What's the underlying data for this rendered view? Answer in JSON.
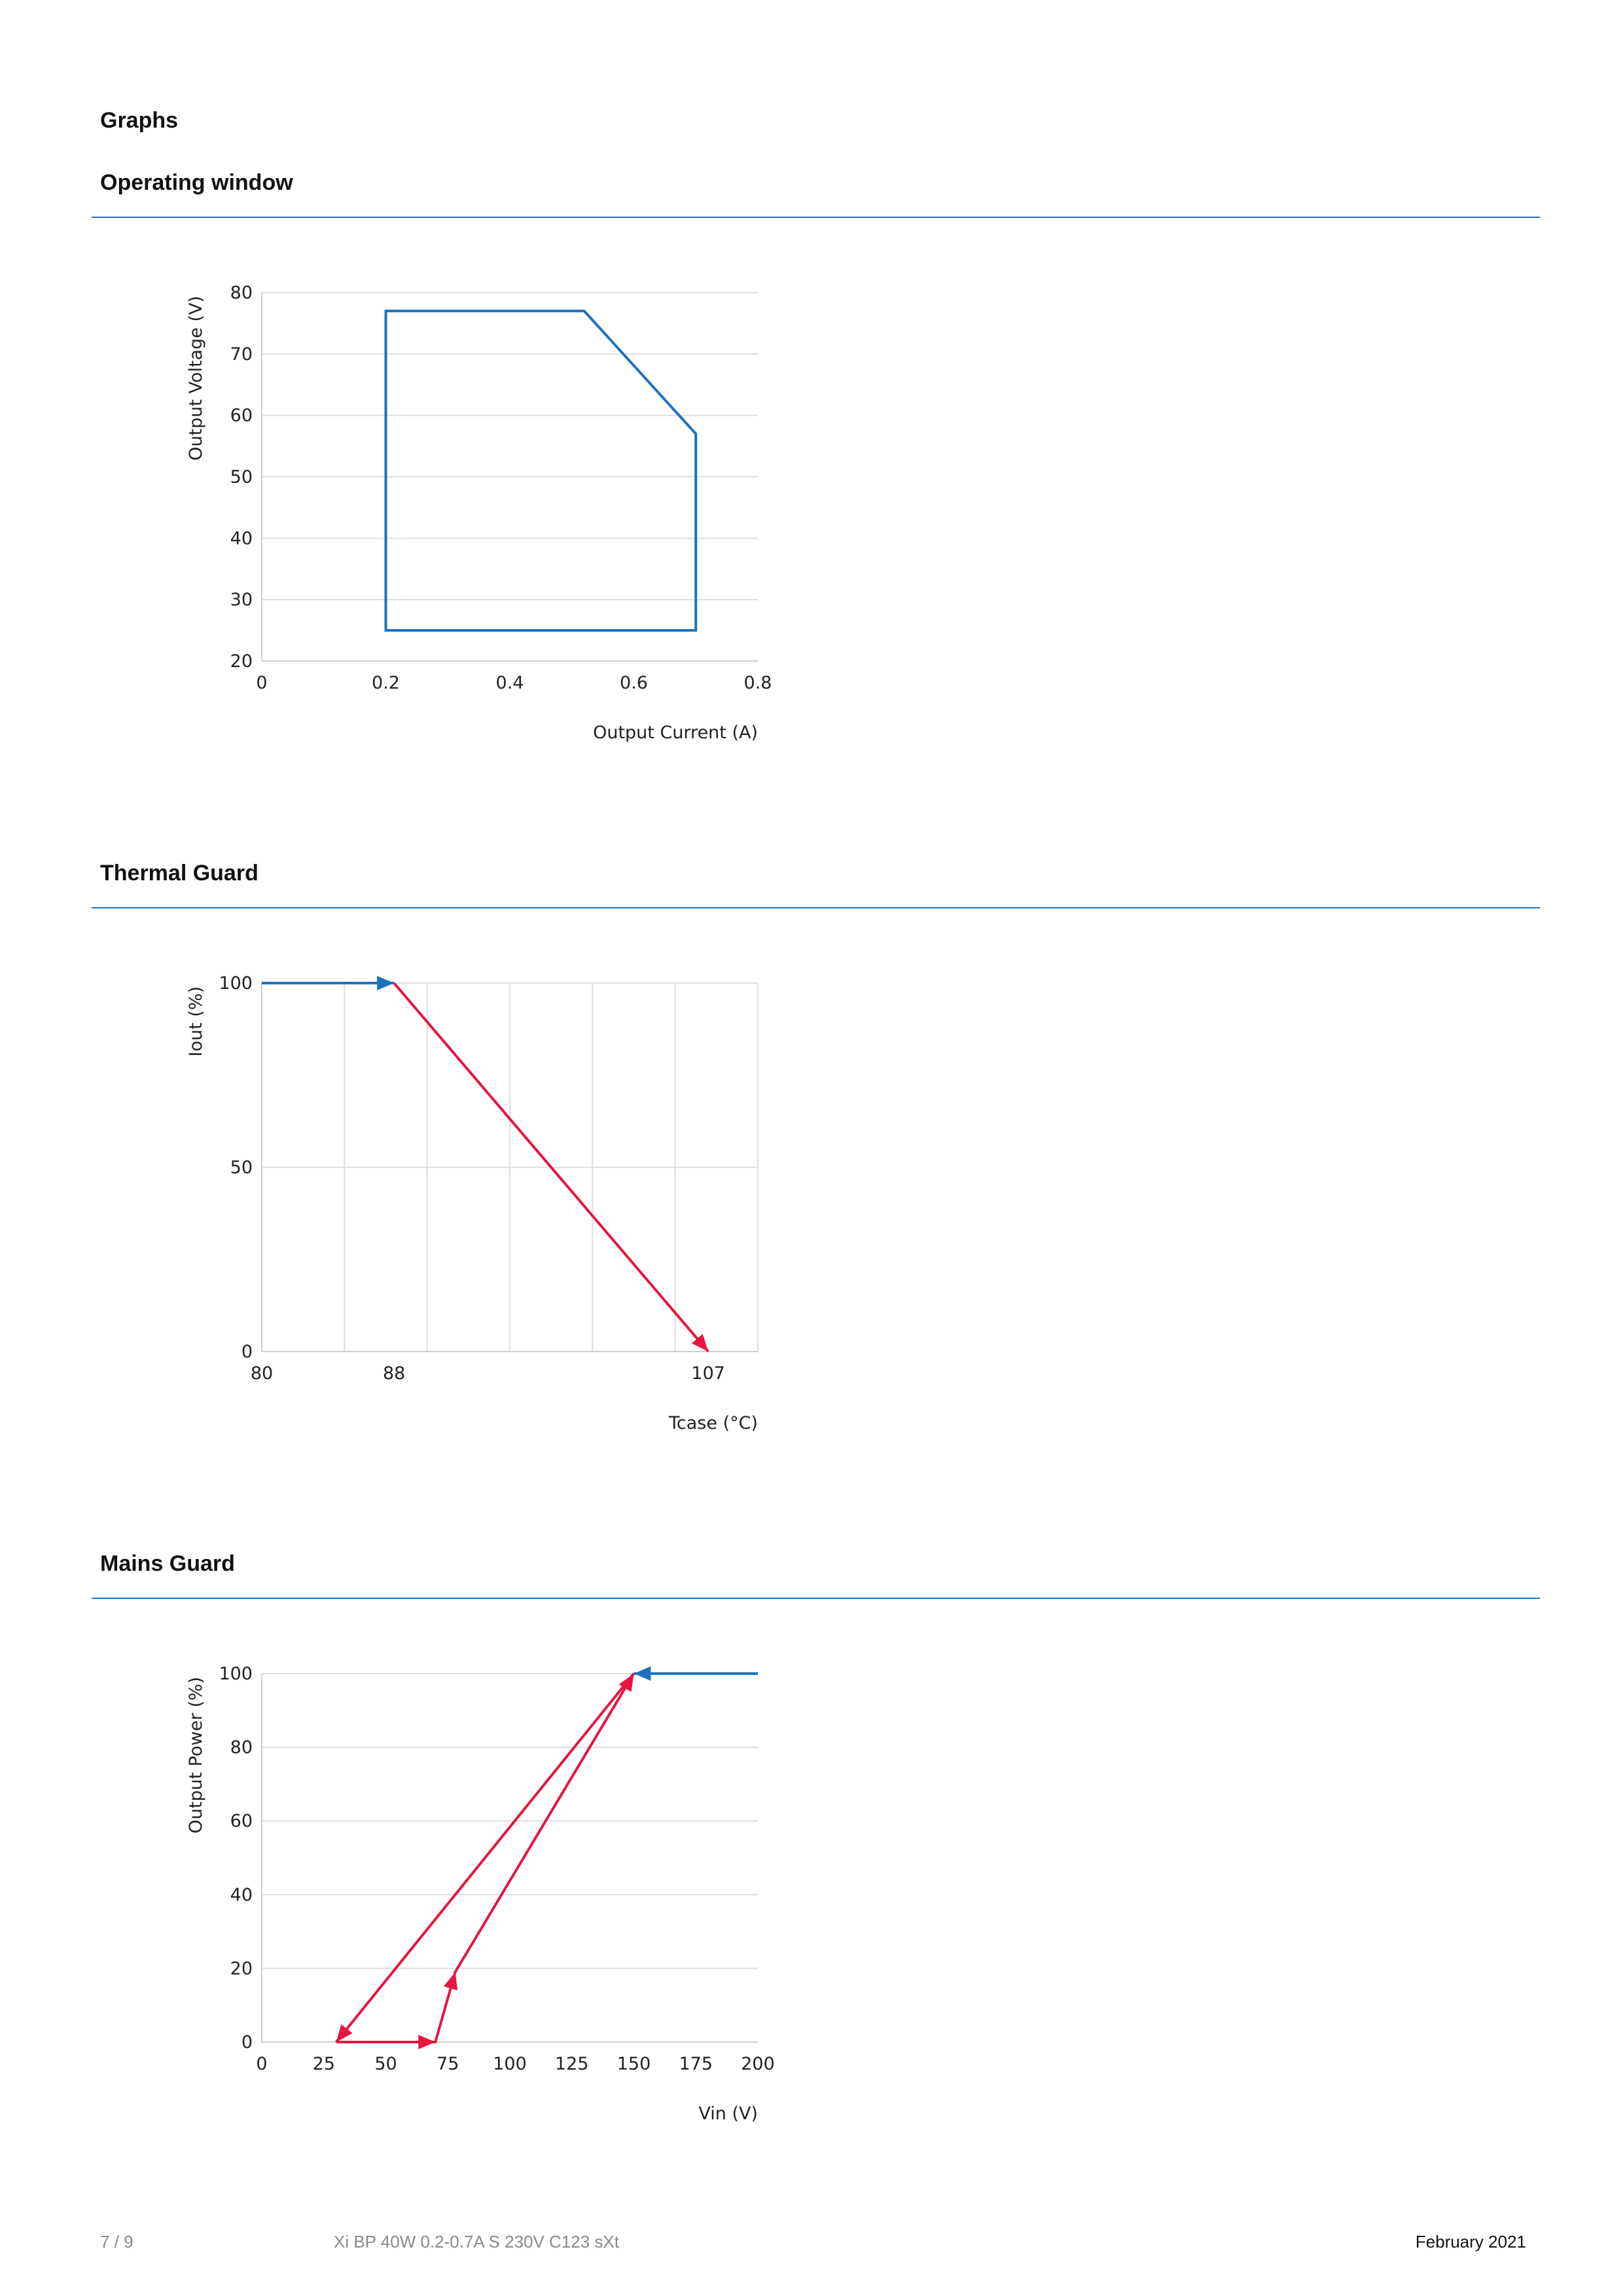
{
  "page": {
    "heading": "Graphs",
    "footer": {
      "page_number": "7 / 9",
      "product": "Xi BP 40W 0.2-0.7A S 230V C123 sXt",
      "date": "February 2021"
    }
  },
  "colors": {
    "rule": "#2a6fb0",
    "blue_line": "#1a72c0",
    "red_line": "#e5163f",
    "grid": "#dedede"
  },
  "sections": [
    {
      "title": "Operating window"
    },
    {
      "title": "Thermal Guard"
    },
    {
      "title": "Mains Guard"
    }
  ],
  "chart_data": [
    {
      "type": "line",
      "xlabel": "Output Current (A)",
      "ylabel": "Output Voltage (V)",
      "xlim": [
        0,
        0.8
      ],
      "ylim": [
        20,
        80
      ],
      "x_ticks": [
        "0",
        "0.2",
        "0.4",
        "0.6",
        "0.8"
      ],
      "y_ticks": [
        "20",
        "30",
        "40",
        "50",
        "60",
        "70",
        "80"
      ],
      "grid": "horizontal",
      "series": [
        {
          "color": "#1a72c0",
          "closed": true,
          "arrows": [],
          "x": [
            0.2,
            0.52,
            0.7,
            0.7,
            0.2
          ],
          "y": [
            77,
            77,
            57,
            25,
            25
          ]
        }
      ]
    },
    {
      "type": "line",
      "xlabel": "Tcase (°C)",
      "ylabel": "Iout (%)",
      "xlim": [
        80,
        110
      ],
      "ylim": [
        0,
        100
      ],
      "x_ticks": [
        "80",
        "88",
        "107"
      ],
      "y_ticks": [
        "0",
        "50",
        "100"
      ],
      "grid": "both",
      "series": [
        {
          "color": "#1a72c0",
          "closed": false,
          "arrows": [
            1
          ],
          "x": [
            80,
            88
          ],
          "y": [
            100,
            100
          ]
        },
        {
          "color": "#e5163f",
          "closed": false,
          "arrows": [
            1
          ],
          "x": [
            88,
            107
          ],
          "y": [
            100,
            0
          ]
        }
      ]
    },
    {
      "type": "line",
      "xlabel": "Vin (V)",
      "ylabel": "Output Power (%)",
      "xlim": [
        0,
        200
      ],
      "ylim": [
        0,
        100
      ],
      "x_ticks": [
        "0",
        "25",
        "50",
        "75",
        "100",
        "125",
        "150",
        "175",
        "200"
      ],
      "y_ticks": [
        "0",
        "20",
        "40",
        "60",
        "80",
        "100"
      ],
      "grid": "horizontal",
      "series": [
        {
          "color": "#1a72c0",
          "closed": false,
          "arrows": [
            1
          ],
          "x": [
            200,
            150
          ],
          "y": [
            100,
            100
          ]
        },
        {
          "color": "#e5163f",
          "closed": false,
          "arrows": [
            1
          ],
          "x": [
            150,
            30
          ],
          "y": [
            100,
            0
          ]
        },
        {
          "color": "#e5163f",
          "closed": false,
          "arrows": [
            1,
            2,
            3
          ],
          "x": [
            30,
            70,
            78,
            150
          ],
          "y": [
            0,
            0,
            19,
            100
          ]
        }
      ]
    }
  ]
}
